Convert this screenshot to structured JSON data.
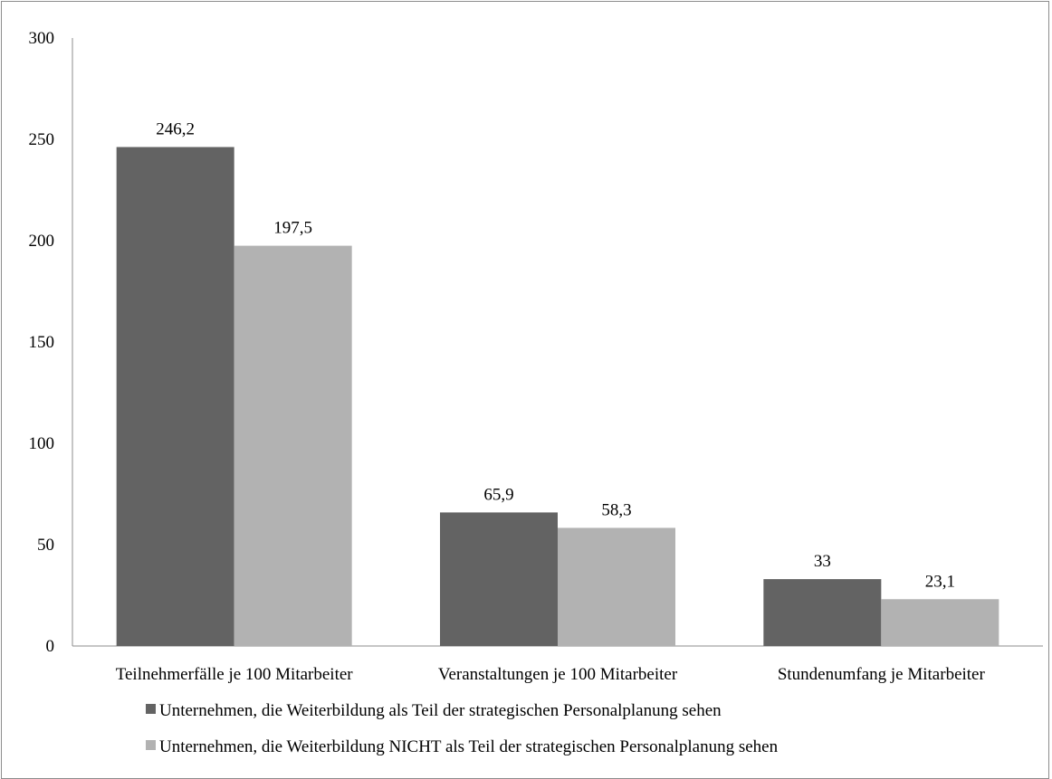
{
  "chart_data": {
    "type": "bar",
    "title": "",
    "xlabel": "",
    "ylabel": "",
    "ylim": [
      0,
      300
    ],
    "yticks": [
      0,
      50,
      100,
      150,
      200,
      250,
      300
    ],
    "grid": false,
    "legend_position": "bottom",
    "categories": [
      "Teilnehmerfälle je 100 Mitarbeiter",
      "Veranstaltungen je 100 Mitarbeiter",
      "Stundenumfang je Mitarbeiter"
    ],
    "series": [
      {
        "name": "Unternehmen, die Weiterbildung als Teil der strategischen Personalplanung sehen",
        "values": [
          246.2,
          65.9,
          33
        ],
        "labels": [
          "246,2",
          "65,9",
          "33"
        ],
        "color": "#636363"
      },
      {
        "name": "Unternehmen, die Weiterbildung NICHT als Teil der strategischen Personalplanung sehen",
        "values": [
          197.5,
          58.3,
          23.1
        ],
        "labels": [
          "197,5",
          "58,3",
          "23,1"
        ],
        "color": "#b2b2b2"
      }
    ]
  }
}
